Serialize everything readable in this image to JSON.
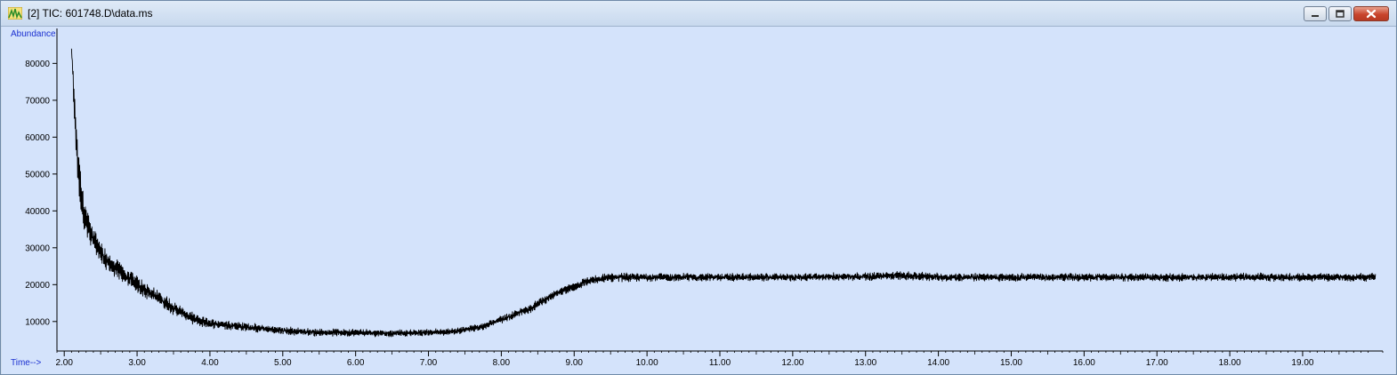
{
  "window": {
    "title": "[2] TIC: 601748.D\\data.ms",
    "icon": "chromatogram-app-icon",
    "controls": [
      "minimize",
      "restore",
      "close"
    ]
  },
  "chart_data": {
    "type": "line",
    "title": "",
    "xlabel": "Time-->",
    "ylabel": "Abundance",
    "xlim": [
      1.9,
      20.1
    ],
    "ylim": [
      2000,
      89000
    ],
    "x_ticks": [
      2.0,
      3.0,
      4.0,
      5.0,
      6.0,
      7.0,
      8.0,
      9.0,
      10.0,
      11.0,
      12.0,
      13.0,
      14.0,
      15.0,
      16.0,
      17.0,
      18.0,
      19.0
    ],
    "x_tick_labels": [
      "2.00",
      "3.00",
      "4.00",
      "5.00",
      "6.00",
      "7.00",
      "8.00",
      "9.00",
      "10.00",
      "11.00",
      "12.00",
      "13.00",
      "14.00",
      "15.00",
      "16.00",
      "17.00",
      "18.00",
      "19.00"
    ],
    "y_ticks": [
      10000,
      20000,
      30000,
      40000,
      50000,
      60000,
      70000,
      80000
    ],
    "y_tick_labels": [
      "10000",
      "20000",
      "30000",
      "40000",
      "50000",
      "60000",
      "70000",
      "80000"
    ],
    "grid": false,
    "colors": {
      "background": "#d4e3fb",
      "trace": "#000000",
      "axis_name": "#1a2fd0"
    },
    "series": [
      {
        "x": [
          2.1,
          2.13,
          2.16,
          2.2,
          2.25,
          2.3,
          2.4,
          2.5,
          2.6,
          2.8,
          3.0,
          3.2,
          3.4,
          3.6,
          3.8,
          4.0,
          4.5,
          5.0,
          5.5,
          6.0,
          6.5,
          7.0,
          7.3,
          7.6,
          7.8,
          8.0,
          8.2,
          8.4,
          8.6,
          8.8,
          9.0,
          9.2,
          9.5,
          10.0,
          11.0,
          12.0,
          13.0,
          13.5,
          14.0,
          15.0,
          16.0,
          17.0,
          18.0,
          19.0,
          20.0
        ],
        "y": [
          84000,
          72000,
          62000,
          50000,
          42000,
          37000,
          32000,
          29000,
          26000,
          23000,
          20000,
          17500,
          15000,
          12500,
          10500,
          9500,
          8500,
          7500,
          7000,
          7000,
          6800,
          7000,
          7200,
          8000,
          9000,
          10500,
          12000,
          13500,
          16000,
          18000,
          19500,
          21000,
          22000,
          22000,
          22000,
          22000,
          22200,
          22500,
          22000,
          22000,
          22000,
          22000,
          22000,
          22000,
          22000
        ],
        "noise": [
          0,
          6000,
          9000,
          8000,
          7000,
          6000,
          5000,
          4500,
          4000,
          3500,
          3200,
          3000,
          2800,
          2400,
          2000,
          1800,
          1600,
          1500,
          1400,
          1400,
          1300,
          1300,
          1300,
          1400,
          1400,
          1500,
          1500,
          1600,
          1600,
          1600,
          1600,
          1600,
          1600,
          1500,
          1500,
          1500,
          1500,
          1600,
          1500,
          1500,
          1500,
          1500,
          1500,
          1500,
          1500
        ]
      }
    ]
  }
}
